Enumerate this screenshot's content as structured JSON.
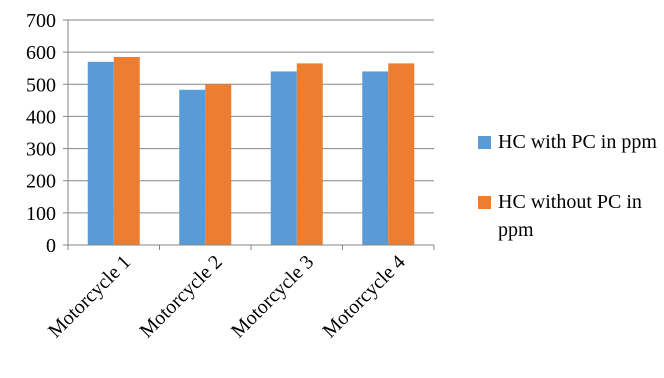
{
  "chart_data": {
    "type": "bar",
    "title": "",
    "xlabel": "",
    "ylabel": "",
    "categories": [
      "Motorcycle 1",
      "Motorcycle 2",
      "Motorcycle 3",
      "Motorcycle 4"
    ],
    "series": [
      {
        "name": "HC with PC in ppm",
        "color": "#5b9bd5",
        "values": [
          570,
          483,
          540,
          540
        ]
      },
      {
        "name": "HC without PC in ppm",
        "color": "#ed7d31",
        "values": [
          585,
          500,
          565,
          565
        ]
      }
    ],
    "ylim": [
      0,
      700
    ],
    "yticks": [
      "0",
      "100",
      "200",
      "300",
      "400",
      "500",
      "600",
      "700"
    ],
    "grid": true,
    "legend_position": "right"
  }
}
